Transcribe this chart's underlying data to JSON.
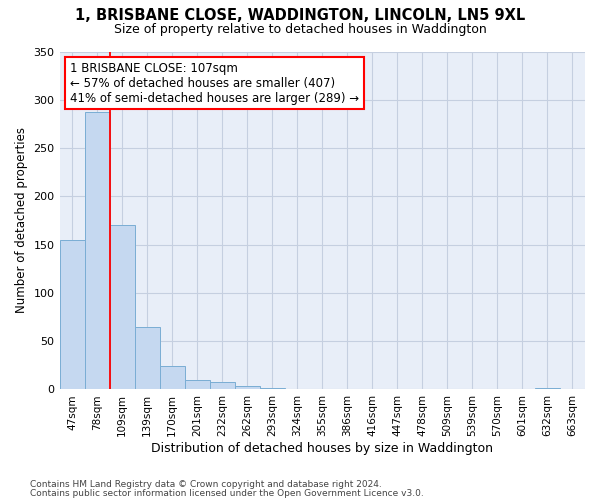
{
  "title1": "1, BRISBANE CLOSE, WADDINGTON, LINCOLN, LN5 9XL",
  "title2": "Size of property relative to detached houses in Waddington",
  "xlabel": "Distribution of detached houses by size in Waddington",
  "ylabel": "Number of detached properties",
  "footer1": "Contains HM Land Registry data © Crown copyright and database right 2024.",
  "footer2": "Contains public sector information licensed under the Open Government Licence v3.0.",
  "annotation_line1": "1 BRISBANE CLOSE: 107sqm",
  "annotation_line2": "← 57% of detached houses are smaller (407)",
  "annotation_line3": "41% of semi-detached houses are larger (289) →",
  "bins": [
    "47sqm",
    "78sqm",
    "109sqm",
    "139sqm",
    "170sqm",
    "201sqm",
    "232sqm",
    "262sqm",
    "293sqm",
    "324sqm",
    "355sqm",
    "386sqm",
    "416sqm",
    "447sqm",
    "478sqm",
    "509sqm",
    "539sqm",
    "570sqm",
    "601sqm",
    "632sqm",
    "663sqm"
  ],
  "values": [
    155,
    287,
    170,
    65,
    24,
    10,
    8,
    4,
    2,
    0,
    0,
    0,
    0,
    0,
    0,
    0,
    0,
    0,
    0,
    2,
    0
  ],
  "bar_color": "#c5d8f0",
  "bar_edge_color": "#7aadd4",
  "ylim": [
    0,
    350
  ],
  "yticks": [
    0,
    50,
    100,
    150,
    200,
    250,
    300,
    350
  ],
  "bg_color": "#ffffff",
  "plot_bg": "#e8eef8",
  "grid_color": "#c5cfe0",
  "red_line_idx": 2
}
